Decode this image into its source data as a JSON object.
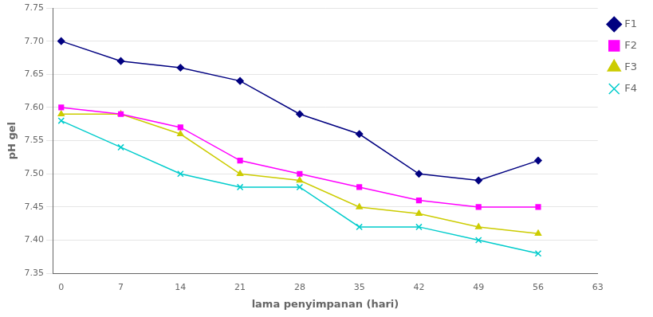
{
  "chart_data": {
    "type": "line",
    "x": [
      0,
      7,
      14,
      21,
      28,
      35,
      42,
      49,
      56
    ],
    "series": [
      {
        "name": "F1",
        "color": "#000080",
        "marker": "diamond",
        "values": [
          7.7,
          7.67,
          7.66,
          7.64,
          7.59,
          7.56,
          7.5,
          7.49,
          7.52
        ]
      },
      {
        "name": "F2",
        "color": "#FF00FF",
        "marker": "square",
        "values": [
          7.6,
          7.59,
          7.57,
          7.52,
          7.5,
          7.48,
          7.46,
          7.45,
          7.45
        ]
      },
      {
        "name": "F3",
        "color": "#CCCC00",
        "marker": "triangle",
        "values": [
          7.59,
          7.59,
          7.56,
          7.5,
          7.49,
          7.45,
          7.44,
          7.42,
          7.41
        ]
      },
      {
        "name": "F4",
        "color": "#00CCCC",
        "marker": "x",
        "values": [
          7.58,
          7.54,
          7.5,
          7.48,
          7.48,
          7.42,
          7.42,
          7.4,
          7.38
        ]
      }
    ],
    "xlabel": "lama penyimpanan (hari)",
    "ylabel": "pH gel",
    "xlim": [
      -1,
      63
    ],
    "xticks": [
      0,
      7,
      14,
      21,
      28,
      35,
      42,
      49,
      56,
      63
    ],
    "ylim": [
      7.35,
      7.75
    ],
    "yticks": [
      7.35,
      {
        "value": 7.4,
        "label": "7.40"
      },
      7.45,
      {
        "value": 7.5,
        "label": "7.50"
      },
      7.55,
      {
        "value": 7.6,
        "label": "7.60"
      },
      7.65,
      {
        "value": 7.7,
        "label": "7.70"
      },
      7.75
    ],
    "grid": "y",
    "legend": "right"
  }
}
